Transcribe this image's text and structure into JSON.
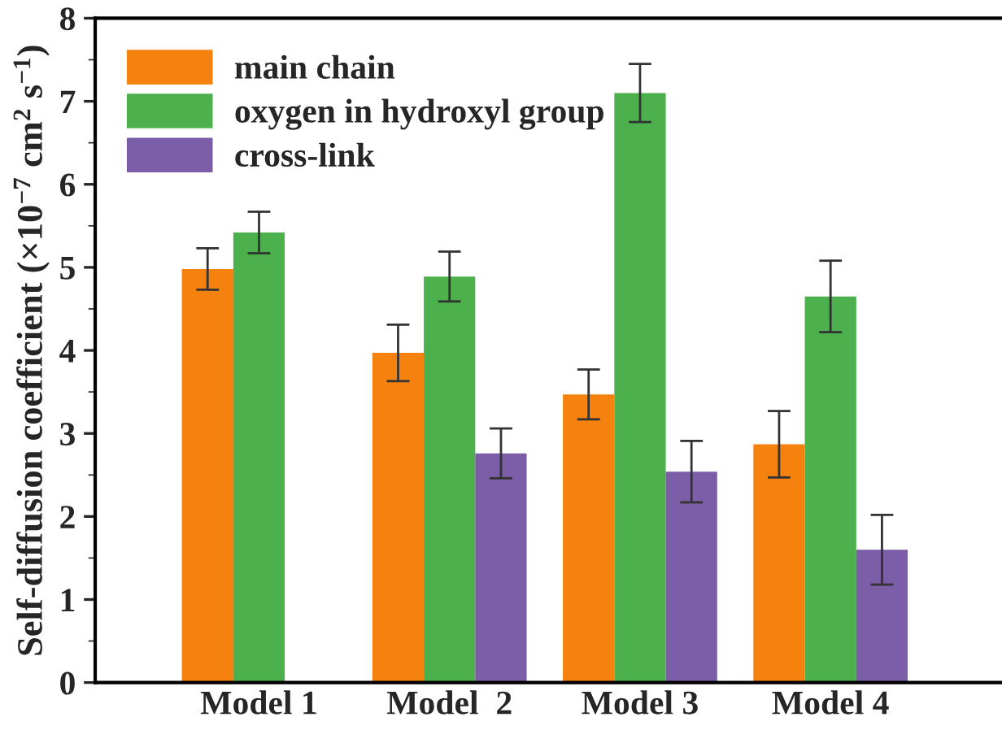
{
  "chart_data": {
    "type": "bar",
    "categories": [
      "Model 1",
      "Model  2",
      "Model 3",
      "Model 4"
    ],
    "ylabel": "Self-diffusion coefficient (×10$^{−7}$ cm$^{2}$ s$^{−1}$)",
    "series": [
      {
        "name": "main chain",
        "color": "#f5820f",
        "values": [
          4.98,
          3.97,
          3.47,
          2.87
        ],
        "errors": [
          0.25,
          0.34,
          0.3,
          0.4
        ]
      },
      {
        "name": "oxygen in hydroxyl group",
        "color": "#4cb04c",
        "values": [
          5.42,
          4.89,
          7.1,
          4.65
        ],
        "errors": [
          0.25,
          0.3,
          0.35,
          0.43
        ]
      },
      {
        "name": "cross-link",
        "color": "#7b5ea7",
        "values": [
          null,
          2.76,
          2.54,
          1.6
        ],
        "errors": [
          null,
          0.3,
          0.37,
          0.42
        ]
      }
    ],
    "ylim": [
      0,
      8
    ],
    "yticks": [
      0,
      1,
      2,
      3,
      4,
      5,
      6,
      7,
      8
    ],
    "grid": false,
    "legend": "top left"
  }
}
